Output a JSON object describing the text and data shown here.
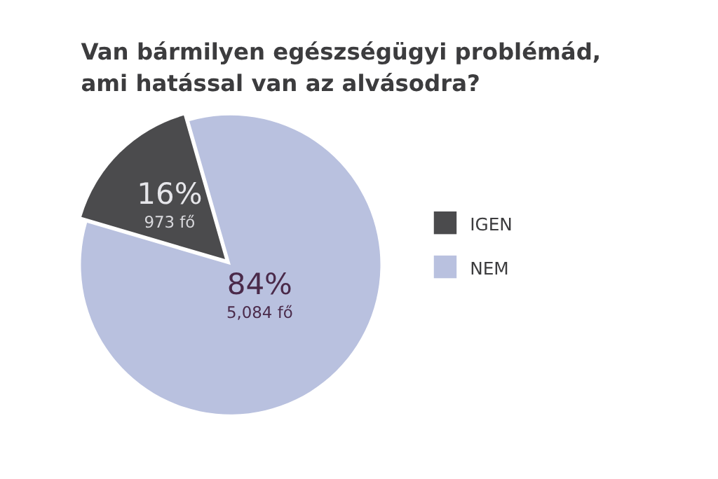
{
  "chart_data": {
    "type": "pie",
    "title": "Van bármilyen egészségügyi problémád,\nami hatással van az alvásodra?",
    "categories": [
      "IGEN",
      "NEM"
    ],
    "values": [
      16,
      84
    ],
    "colors": [
      "#4b4b4d",
      "#b9c1df"
    ],
    "value_labels": [
      "16%",
      "84%"
    ],
    "annotations": [
      "973 fő",
      "5,084 fő"
    ],
    "legend": "right"
  }
}
